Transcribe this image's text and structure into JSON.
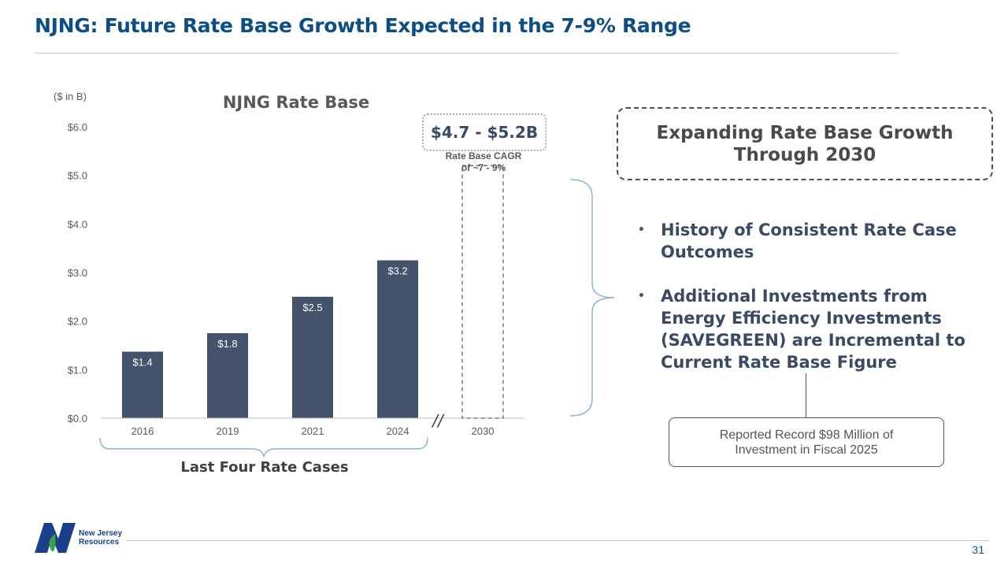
{
  "title": "NJNG: Future Rate Base Growth Expected in the 7-9% Range",
  "page_number": "31",
  "logo": {
    "line1": "New Jersey",
    "line2": "Resources",
    "icon": "njr-logo-icon",
    "brand_color": "#1b3f8b"
  },
  "chart_data": {
    "type": "bar",
    "title": "NJNG Rate Base",
    "unit_label": "($ in B)",
    "categories": [
      "2016",
      "2019",
      "2021",
      "2024"
    ],
    "values": [
      1.37,
      1.75,
      2.5,
      3.25
    ],
    "value_labels": [
      "$1.4",
      "$1.8",
      "$2.5",
      "$3.2"
    ],
    "projected": {
      "category": "2030",
      "low": 4.7,
      "high": 5.2,
      "label": "$4.7 - $5.2B",
      "note": "Rate Base CAGR of ~7 - 9%",
      "note_lines": [
        "Rate Base CAGR",
        "of ~7 - 9%"
      ]
    },
    "yticks": [
      0,
      1,
      2,
      3,
      4,
      5,
      6
    ],
    "ytick_labels": [
      "$0.0",
      "$1.0",
      "$2.0",
      "$3.0",
      "$4.0",
      "$5.0",
      "$6.0"
    ],
    "ylim": [
      0,
      6
    ],
    "bar_color": "#44536b",
    "axis_break": "//",
    "bracket_label": "Last Four Rate Cases"
  },
  "callout": {
    "line1": "Expanding Rate Base Growth",
    "line2": "Through 2030"
  },
  "bullets": [
    "History of Consistent Rate Case Outcomes",
    "Additional Investments from Energy Efficiency Investments (SAVEGREEN) are Incremental to Current Rate Base Figure"
  ],
  "note": "Reported Record $98 Million of Investment in Fiscal 2025",
  "colors": {
    "title": "#0c4d86",
    "text": "#3a4a63"
  }
}
